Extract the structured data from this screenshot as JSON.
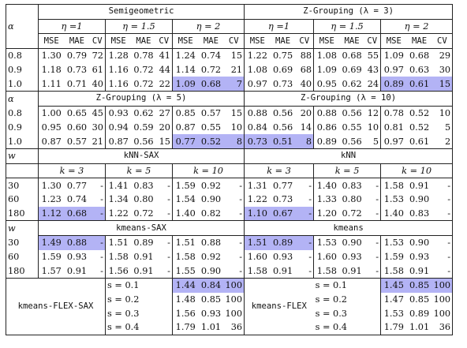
{
  "highlight_color": "#b3b3f5",
  "blocks": [
    {
      "row_var": "α",
      "groups": [
        {
          "title": "Semigeometric",
          "subs": [
            "η =1",
            "η = 1.5",
            "η = 2"
          ]
        },
        {
          "title": "Z-Grouping (λ = 3)",
          "subs": [
            "η =1",
            "η = 1.5",
            "η = 2"
          ]
        }
      ],
      "metrics": [
        "MSE",
        "MAE",
        "CV"
      ],
      "rows": [
        {
          "label": "0.8",
          "cells": [
            [
              "1.30",
              "0.79",
              "72"
            ],
            [
              "1.28",
              "0.78",
              "41"
            ],
            [
              "1.24",
              "0.74",
              "15"
            ],
            [
              "1.22",
              "0.75",
              "88"
            ],
            [
              "1.08",
              "0.68",
              "55"
            ],
            [
              "1.09",
              "0.68",
              "29"
            ]
          ]
        },
        {
          "label": "0.9",
          "cells": [
            [
              "1.18",
              "0.73",
              "61"
            ],
            [
              "1.16",
              "0.72",
              "44"
            ],
            [
              "1.14",
              "0.72",
              "21"
            ],
            [
              "1.08",
              "0.69",
              "68"
            ],
            [
              "1.09",
              "0.69",
              "43"
            ],
            [
              "0.97",
              "0.63",
              "30"
            ]
          ]
        },
        {
          "label": "1.0",
          "cells": [
            [
              "1.11",
              "0.71",
              "40"
            ],
            [
              "1.16",
              "0.72",
              "22"
            ],
            [
              "1.09",
              "0.68",
              "7"
            ],
            [
              "0.97",
              "0.73",
              "40"
            ],
            [
              "0.95",
              "0.62",
              "24"
            ],
            [
              "0.89",
              "0.61",
              "15"
            ]
          ]
        }
      ],
      "highlight": [
        [
          2,
          2
        ],
        [
          2,
          5
        ]
      ]
    },
    {
      "row_var": "α",
      "groups": [
        {
          "title": "Z-Grouping (λ = 5)"
        },
        {
          "title": "Z-Grouping (λ = 10)"
        }
      ],
      "rows": [
        {
          "label": "0.8",
          "cells": [
            [
              "1.00",
              "0.65",
              "45"
            ],
            [
              "0.93",
              "0.62",
              "27"
            ],
            [
              "0.85",
              "0.57",
              "15"
            ],
            [
              "0.88",
              "0.56",
              "20"
            ],
            [
              "0.88",
              "0.56",
              "12"
            ],
            [
              "0.78",
              "0.52",
              "10"
            ]
          ]
        },
        {
          "label": "0.9",
          "cells": [
            [
              "0.95",
              "0.60",
              "30"
            ],
            [
              "0.94",
              "0.59",
              "20"
            ],
            [
              "0.87",
              "0.55",
              "10"
            ],
            [
              "0.84",
              "0.56",
              "14"
            ],
            [
              "0.86",
              "0.55",
              "10"
            ],
            [
              "0.81",
              "0.52",
              "5"
            ]
          ]
        },
        {
          "label": "1.0",
          "cells": [
            [
              "0.87",
              "0.57",
              "21"
            ],
            [
              "0.87",
              "0.56",
              "15"
            ],
            [
              "0.77",
              "0.52",
              "8"
            ],
            [
              "0.73",
              "0.51",
              "8"
            ],
            [
              "0.89",
              "0.56",
              "5"
            ],
            [
              "0.97",
              "0.61",
              "2"
            ]
          ]
        }
      ],
      "highlight": [
        [
          2,
          2
        ],
        [
          2,
          3
        ]
      ]
    },
    {
      "row_var": "w",
      "groups": [
        {
          "title": "kNN-SAX",
          "subs": [
            "k = 3",
            "k = 5",
            "k = 10"
          ]
        },
        {
          "title": "kNN",
          "subs": [
            "k = 3",
            "k = 5",
            "k = 10"
          ]
        }
      ],
      "rows": [
        {
          "label": "30",
          "cells": [
            [
              "1.30",
              "0.77",
              "-"
            ],
            [
              "1.41",
              "0.83",
              "-"
            ],
            [
              "1.59",
              "0.92",
              "-"
            ],
            [
              "1.31",
              "0.77",
              "-"
            ],
            [
              "1.40",
              "0.83",
              "-"
            ],
            [
              "1.58",
              "0.91",
              "-"
            ]
          ]
        },
        {
          "label": "60",
          "cells": [
            [
              "1.23",
              "0.74",
              "-"
            ],
            [
              "1.34",
              "0.80",
              "-"
            ],
            [
              "1.54",
              "0.90",
              "-"
            ],
            [
              "1.22",
              "0.73",
              "-"
            ],
            [
              "1.33",
              "0.80",
              "-"
            ],
            [
              "1.53",
              "0.90",
              "-"
            ]
          ]
        },
        {
          "label": "180",
          "cells": [
            [
              "1.12",
              "0.68",
              "-"
            ],
            [
              "1.22",
              "0.72",
              "-"
            ],
            [
              "1.40",
              "0.82",
              "-"
            ],
            [
              "1.10",
              "0.67",
              "-"
            ],
            [
              "1.20",
              "0.72",
              "-"
            ],
            [
              "1.40",
              "0.83",
              "-"
            ]
          ]
        }
      ],
      "highlight": [
        [
          2,
          0
        ],
        [
          2,
          3
        ]
      ]
    },
    {
      "row_var": "w",
      "groups": [
        {
          "title": "kmeans-SAX"
        },
        {
          "title": "kmeans"
        }
      ],
      "rows": [
        {
          "label": "30",
          "cells": [
            [
              "1.49",
              "0.88",
              "-"
            ],
            [
              "1.51",
              "0.89",
              "-"
            ],
            [
              "1.51",
              "0.88",
              "-"
            ],
            [
              "1.51",
              "0.89",
              "-"
            ],
            [
              "1.53",
              "0.90",
              "-"
            ],
            [
              "1.53",
              "0.90",
              "-"
            ]
          ]
        },
        {
          "label": "60",
          "cells": [
            [
              "1.59",
              "0.93",
              "-"
            ],
            [
              "1.58",
              "0.91",
              "-"
            ],
            [
              "1.58",
              "0.92",
              "-"
            ],
            [
              "1.60",
              "0.93",
              "-"
            ],
            [
              "1.60",
              "0.93",
              "-"
            ],
            [
              "1.59",
              "0.93",
              "-"
            ]
          ]
        },
        {
          "label": "180",
          "cells": [
            [
              "1.57",
              "0.91",
              "-"
            ],
            [
              "1.56",
              "0.91",
              "-"
            ],
            [
              "1.55",
              "0.90",
              "-"
            ],
            [
              "1.58",
              "0.91",
              "-"
            ],
            [
              "1.58",
              "0.91",
              "-"
            ],
            [
              "1.58",
              "0.91",
              "-"
            ]
          ]
        }
      ],
      "highlight": [
        [
          0,
          0
        ],
        [
          0,
          3
        ]
      ]
    }
  ],
  "flex": {
    "left_label": "kmeans-FLEX-SAX",
    "right_label": "kmeans-FLEX",
    "s_values": [
      "s = 0.1",
      "s = 0.2",
      "s = 0.3",
      "s = 0.4"
    ],
    "left_cells": [
      [
        "1.44",
        "0.84",
        "100"
      ],
      [
        "1.48",
        "0.85",
        "100"
      ],
      [
        "1.56",
        "0.93",
        "100"
      ],
      [
        "1.79",
        "1.01",
        "36"
      ]
    ],
    "right_cells": [
      [
        "1.45",
        "0.85",
        "100"
      ],
      [
        "1.47",
        "0.85",
        "100"
      ],
      [
        "1.53",
        "0.89",
        "100"
      ],
      [
        "1.79",
        "1.01",
        "36"
      ]
    ],
    "highlight_row": 0
  }
}
